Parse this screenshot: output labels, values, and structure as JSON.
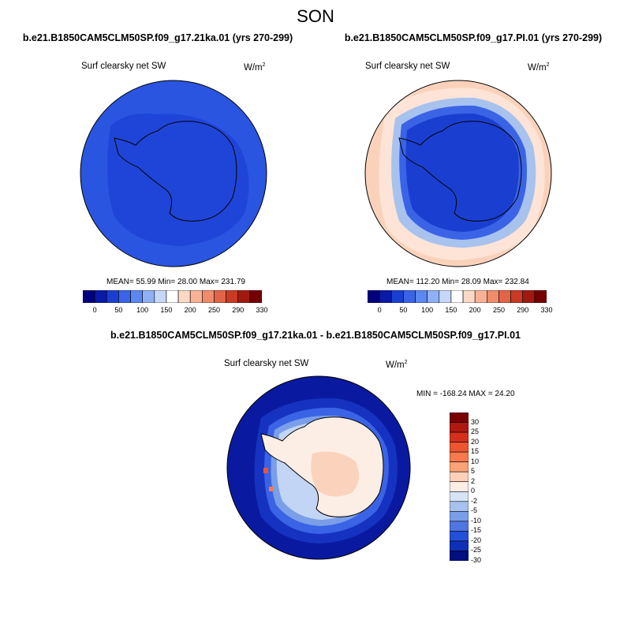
{
  "header": {
    "season": "SON"
  },
  "panels": [
    {
      "case": "b.e21.B1850CAM5CLM50SP.f09_g17.21ka.01 (yrs 270-299)",
      "variable": "Surf clearsky net SW",
      "units_base": "W/m",
      "units_exp": "2",
      "stats": "MEAN=  55.99  Min=  28.00  Max= 231.79"
    },
    {
      "case": "b.e21.B1850CAM5CLM50SP.f09_g17.PI.01 (yrs 270-299)",
      "variable": "Surf clearsky net SW",
      "units_base": "W/m",
      "units_exp": "2",
      "stats": "MEAN= 112.20  Min=  28.09  Max= 232.84"
    }
  ],
  "colorbar": {
    "colors": [
      "#00007f",
      "#0a1aa8",
      "#1a3fd0",
      "#3a63e6",
      "#5d88f0",
      "#8fb0f5",
      "#c5d8fa",
      "#ffffff",
      "#fcd9c6",
      "#f8b396",
      "#f08c6c",
      "#e26548",
      "#c93a25",
      "#a11a10",
      "#740000"
    ],
    "ticks": [
      "0",
      "50",
      "100",
      "150",
      "200",
      "250",
      "290",
      "330"
    ]
  },
  "diff": {
    "title": "b.e21.B1850CAM5CLM50SP.f09_g17.21ka.01 - b.e21.B1850CAM5CLM50SP.f09_g17.PI.01",
    "variable": "Surf clearsky net SW",
    "units_base": "W/m",
    "units_exp": "2",
    "stats": "MIN = -168.24 MAX =  24.20",
    "colorbar": {
      "colors_top_to_bottom": [
        "#7a0000",
        "#b01810",
        "#d6301c",
        "#ee5530",
        "#f8794d",
        "#fba276",
        "#fdd0b8",
        "#fdeee5",
        "#d6e4f6",
        "#a8c2ee",
        "#7a9ee8",
        "#4f76e2",
        "#2350d8",
        "#0f2fb8",
        "#00107f"
      ],
      "labels_top_to_bottom": [
        "30",
        "25",
        "20",
        "15",
        "10",
        "5",
        "2",
        "0",
        "-2",
        "-5",
        "-10",
        "-15",
        "-20",
        "-25",
        "-30"
      ]
    }
  }
}
